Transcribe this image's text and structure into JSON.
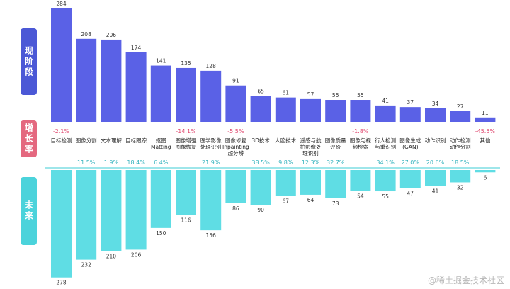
{
  "side_labels": {
    "top": "现阶段",
    "middle": "增长率",
    "bottom": "未来"
  },
  "watermark": "@稀土掘金技术社区",
  "colors": {
    "current": "#5a61e6",
    "future": "#5fdde4",
    "growth_positive": "#36b3be",
    "growth_negative": "#e0466e",
    "divider": "#7fdde3"
  },
  "chart_data": {
    "type": "bar",
    "categories": [
      "目标检测",
      "图像分割",
      "文本理解",
      "目标跟踪",
      "抠图 Matting",
      "图像增强 图像恢复",
      "医学影像 处理识别",
      "图像修复 Inpainting 超分辨",
      "3D技术",
      "人脸技术",
      "遥感与航 拍影像处 理识别",
      "图像质量 评价",
      "图像与视 频检索",
      "行人检测 与重识别",
      "图像生成 (GAN)",
      "动作识别",
      "动作检测 动作分割",
      "其他"
    ],
    "category_lines": [
      [
        "目标检测"
      ],
      [
        "图像分割"
      ],
      [
        "文本理解"
      ],
      [
        "目标跟踪"
      ],
      [
        "抠图",
        "Matting"
      ],
      [
        "图像增强",
        "图像恢复"
      ],
      [
        "医学影像",
        "处理识别"
      ],
      [
        "图像修复",
        "Inpainting",
        "超分辨"
      ],
      [
        "3D技术"
      ],
      [
        "人脸技术"
      ],
      [
        "遥感与航",
        "拍影像处",
        "理识别"
      ],
      [
        "图像质量",
        "评价"
      ],
      [
        "图像与视",
        "频检索"
      ],
      [
        "行人检测",
        "与重识别"
      ],
      [
        "图像生成",
        "(GAN)"
      ],
      [
        "动作识别"
      ],
      [
        "动作检测",
        "动作分割"
      ],
      [
        "其他"
      ]
    ],
    "series": [
      {
        "name": "现阶段",
        "values": [
          284,
          208,
          206,
          174,
          141,
          135,
          128,
          91,
          65,
          61,
          57,
          55,
          55,
          41,
          37,
          34,
          27,
          11
        ]
      },
      {
        "name": "未来",
        "values": [
          278,
          232,
          210,
          206,
          150,
          116,
          156,
          86,
          90,
          67,
          64,
          73,
          54,
          55,
          47,
          41,
          32,
          6
        ]
      }
    ],
    "growth_rate": [
      "-2.1%",
      "11.5%",
      "1.9%",
      "18.4%",
      "6.4%",
      "-14.1%",
      "21.9%",
      "-5.5%",
      "38.5%",
      "9.8%",
      "12.3%",
      "32.7%",
      "-1.8%",
      "34.1%",
      "27.0%",
      "20.6%",
      "18.5%",
      "-45.5%"
    ],
    "ylim": [
      0,
      284
    ]
  }
}
